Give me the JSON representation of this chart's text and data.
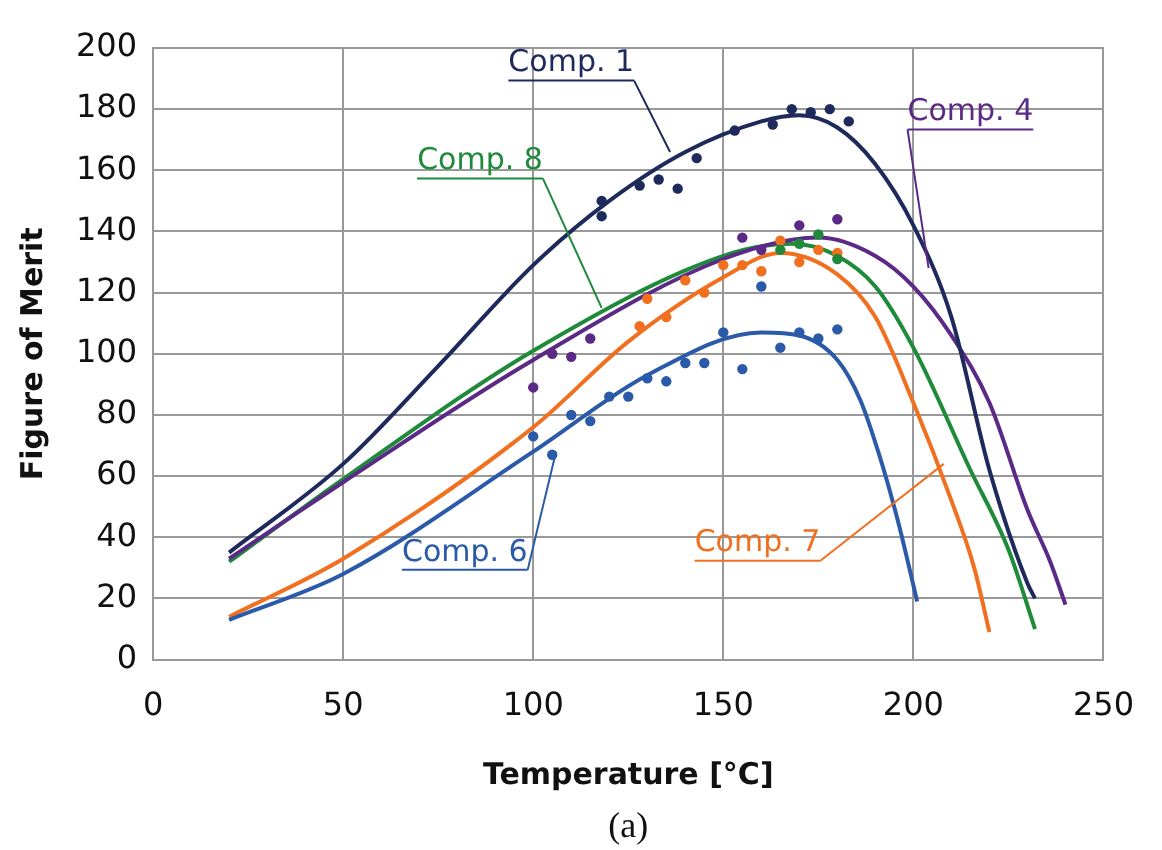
{
  "chart_data": {
    "type": "line",
    "xlabel": "Temperature [°C]",
    "ylabel": "Figure of Merit",
    "annotations": [
      "(a)"
    ],
    "xlim": [
      0,
      250
    ],
    "xticks": [
      0,
      50,
      100,
      150,
      200,
      250
    ],
    "ylim": [
      0,
      200
    ],
    "yticks": [
      0,
      20,
      40,
      60,
      80,
      100,
      120,
      140,
      160,
      180,
      200
    ],
    "grid": true,
    "legend": false,
    "series": [
      {
        "name": "Comp. 1",
        "marker": "none",
        "color": "#1f2a5c",
        "x": [
          20,
          50,
          75,
          100,
          120,
          140,
          160,
          170,
          180,
          190,
          200,
          210,
          220,
          230,
          232
        ],
        "values": [
          35,
          64,
          96,
          129,
          150,
          166,
          176,
          178,
          174,
          162,
          142,
          112,
          62,
          25,
          20
        ]
      },
      {
        "name": "Comp. 4",
        "marker": "none",
        "color": "#5b2a86",
        "x": [
          20,
          50,
          100,
          150,
          175,
          190,
          200,
          210,
          220,
          230,
          236,
          240
        ],
        "values": [
          33,
          58,
          98,
          131,
          138,
          132,
          122,
          106,
          84,
          49,
          32,
          18
        ]
      },
      {
        "name": "Comp. 8",
        "marker": "none",
        "color": "#1e8a3a",
        "x": [
          20,
          50,
          100,
          150,
          168,
          180,
          190,
          200,
          215,
          225,
          232
        ],
        "values": [
          32,
          59,
          101,
          132,
          136,
          132,
          122,
          102,
          62,
          36,
          10
        ]
      },
      {
        "name": "Comp. 6",
        "marker": "none",
        "color": "#2a5aa8",
        "x": [
          20,
          50,
          100,
          130,
          160,
          170,
          180,
          186,
          191,
          196,
          201
        ],
        "values": [
          13,
          28,
          68,
          93,
          107,
          106,
          98,
          85,
          67,
          45,
          19
        ]
      },
      {
        "name": "Comp. 7",
        "marker": "none",
        "color": "#f07020",
        "x": [
          20,
          50,
          100,
          125,
          150,
          165,
          180,
          190,
          200,
          210,
          216,
          220
        ],
        "values": [
          14,
          33,
          76,
          104,
          125,
          133,
          126,
          112,
          84,
          52,
          30,
          9
        ]
      },
      {
        "type": "scatter",
        "marker": "circle",
        "color": "#1f2a5c",
        "x": [
          118,
          118,
          128,
          133,
          138,
          143,
          153,
          163,
          168,
          173,
          178,
          183
        ],
        "values": [
          150,
          145,
          155,
          157,
          154,
          164,
          173,
          175,
          180,
          179,
          180,
          176
        ]
      },
      {
        "type": "scatter",
        "marker": "circle",
        "color": "#5b2a86",
        "x": [
          100,
          105,
          110,
          115,
          155,
          160,
          170,
          180
        ],
        "values": [
          89,
          100,
          99,
          105,
          138,
          134,
          142,
          144
        ]
      },
      {
        "type": "scatter",
        "marker": "circle",
        "color": "#1e8a3a",
        "x": [
          165,
          170,
          175,
          180
        ],
        "values": [
          134,
          136,
          139,
          131
        ]
      },
      {
        "type": "scatter",
        "marker": "circle",
        "color": "#2a5aa8",
        "x": [
          100,
          105,
          110,
          115,
          120,
          125,
          130,
          135,
          140,
          145,
          150,
          155,
          160,
          165,
          170,
          175,
          180
        ],
        "values": [
          73,
          67,
          80,
          78,
          86,
          86,
          92,
          91,
          97,
          97,
          107,
          95,
          122,
          102,
          107,
          105,
          108
        ]
      },
      {
        "type": "scatter",
        "marker": "circle",
        "color": "#f07020",
        "x": [
          128,
          130,
          135,
          140,
          145,
          150,
          155,
          160,
          165,
          170,
          175,
          180
        ],
        "values": [
          109,
          118,
          112,
          124,
          120,
          129,
          129,
          127,
          137,
          130,
          134,
          133
        ]
      }
    ]
  }
}
